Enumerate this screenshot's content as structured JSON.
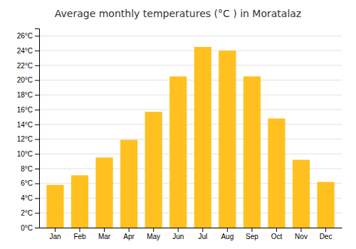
{
  "chart_data": {
    "type": "bar",
    "title": "Average monthly temperatures (°C ) in Moratalaz",
    "categories": [
      "Jan",
      "Feb",
      "Mar",
      "Apr",
      "May",
      "Jun",
      "Jul",
      "Aug",
      "Sep",
      "Oct",
      "Nov",
      "Dec"
    ],
    "values": [
      5.8,
      7.1,
      9.5,
      11.9,
      15.7,
      20.5,
      24.5,
      24.0,
      20.5,
      14.8,
      9.2,
      6.2
    ],
    "color": "#FFC020",
    "ylim": [
      0,
      27
    ],
    "yticks": [
      {
        "value": 0,
        "label": "0°C"
      },
      {
        "value": 2,
        "label": "2°C"
      },
      {
        "value": 4,
        "label": "4°C"
      },
      {
        "value": 6,
        "label": "6°C"
      },
      {
        "value": 8,
        "label": "8°C"
      },
      {
        "value": 10,
        "label": "10°C"
      },
      {
        "value": 12,
        "label": "12°C"
      },
      {
        "value": 14,
        "label": "14°C"
      },
      {
        "value": 16,
        "label": "16°C"
      },
      {
        "value": 18,
        "label": "18°C"
      },
      {
        "value": 20,
        "label": "20°C"
      },
      {
        "value": 22,
        "label": "22°C"
      },
      {
        "value": 24,
        "label": "24°C"
      },
      {
        "value": 26,
        "label": "26°C"
      }
    ],
    "grid": true
  }
}
